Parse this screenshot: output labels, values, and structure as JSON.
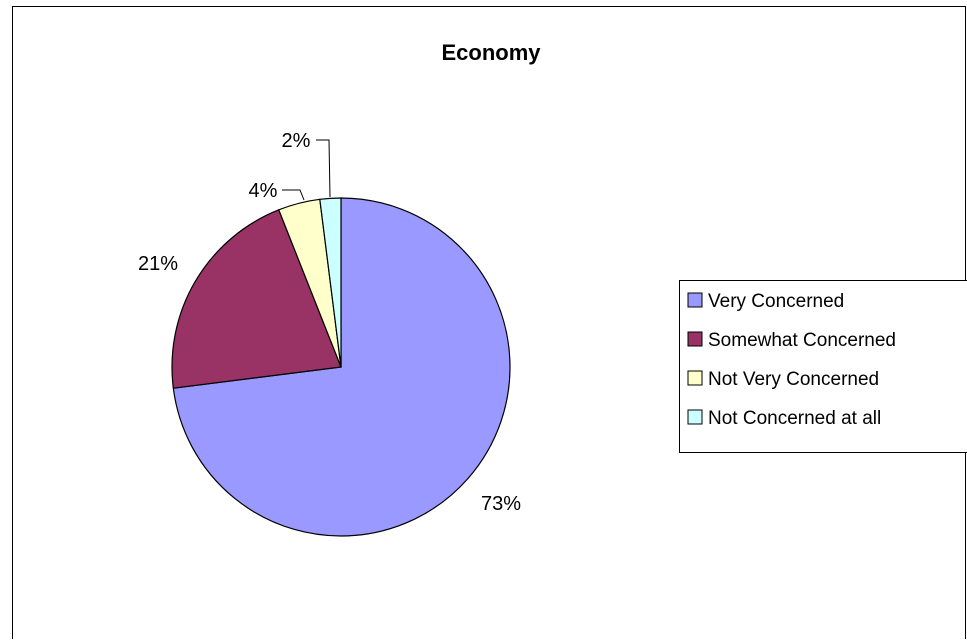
{
  "chart_data": {
    "type": "pie",
    "title": "Economy",
    "categories": [
      "Very Concerned",
      "Somewhat Concerned",
      "Not Very Concerned",
      "Not Concerned at all"
    ],
    "values": [
      73,
      21,
      4,
      2
    ],
    "data_labels": [
      "73%",
      "21%",
      "4%",
      "2%"
    ],
    "colors": [
      "#9999ff",
      "#993366",
      "#ffffcc",
      "#ccffff"
    ],
    "legend_position": "right",
    "unit": "%"
  }
}
